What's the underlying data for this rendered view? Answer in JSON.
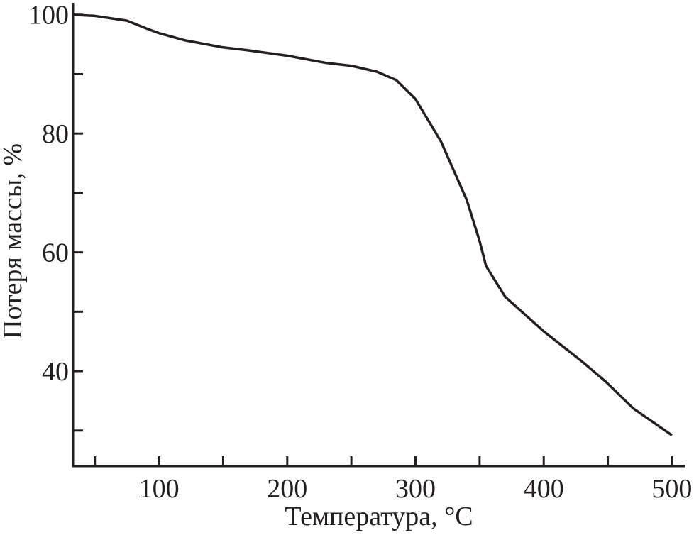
{
  "chart_data": {
    "type": "line",
    "x_label": "Температура, °C",
    "y_label": "Потеря массы, %",
    "xlim": [
      33,
      510
    ],
    "ylim": [
      24,
      102
    ],
    "xticks": [
      100,
      200,
      300,
      400,
      500
    ],
    "x_minor_ticks": [
      50,
      150,
      250,
      350,
      450
    ],
    "yticks": [
      40,
      60,
      80,
      100
    ],
    "y_minor_ticks": [
      30,
      50,
      70,
      90
    ],
    "grid": false,
    "series": [
      {
        "color": "#231f20",
        "x": [
          33,
          50,
          75,
          90,
          100,
          120,
          150,
          170,
          200,
          230,
          250,
          270,
          285,
          300,
          320,
          340,
          350,
          355,
          370,
          400,
          430,
          448,
          470,
          500
        ],
        "values": [
          100,
          99.8,
          99.0,
          97.7,
          96.9,
          95.7,
          94.5,
          94.0,
          93.1,
          91.9,
          91.4,
          90.4,
          89.0,
          85.8,
          78.6,
          68.8,
          61.9,
          57.7,
          52.5,
          46.7,
          41.6,
          38.3,
          33.7,
          29.2
        ]
      }
    ]
  }
}
